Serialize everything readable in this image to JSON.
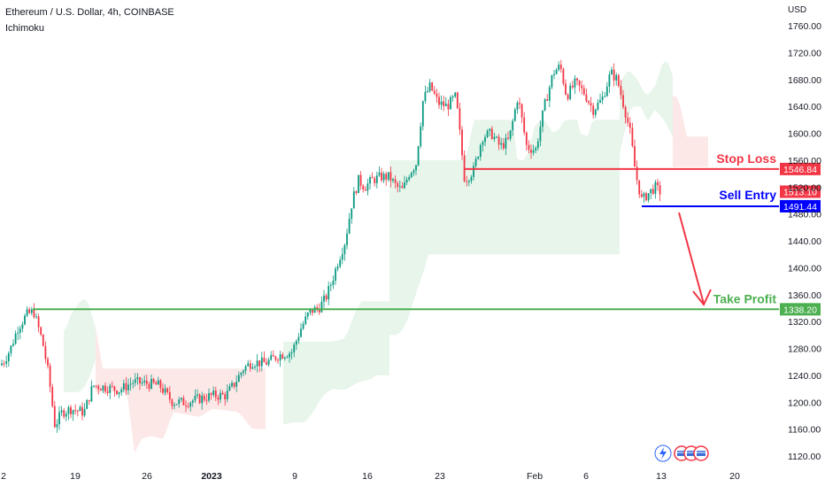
{
  "header": {
    "symbol": "Ethereum / U.S. Dollar, 4h, COINBASE",
    "indicator": "Ichimoku"
  },
  "currency": "USD",
  "colors": {
    "bull": "#089981",
    "bear": "#f23645",
    "stop": "#f23645",
    "entry": "#0000ff",
    "profit": "#4caf50",
    "cloud_green": "#e5f4e9",
    "cloud_red": "#fde6e6",
    "arrow": "#f23645"
  },
  "chart_data": {
    "type": "candlestick",
    "ylim": [
      1120,
      1780
    ],
    "y_ticks": [
      "1760.00",
      "1720.00",
      "1680.00",
      "1640.00",
      "1600.00",
      "1560.00",
      "1520.00",
      "1480.00",
      "1440.00",
      "1400.00",
      "1360.00",
      "1320.00",
      "1280.00",
      "1240.00",
      "1200.00",
      "1160.00",
      "1120.00"
    ],
    "x_ticks": [
      "2",
      "19",
      "26",
      "2023",
      "9",
      "16",
      "23",
      "Feb",
      "6",
      "13",
      "20"
    ],
    "price_path": [
      [
        0,
        1255
      ],
      [
        5,
        1262
      ],
      [
        12,
        1280
      ],
      [
        20,
        1310
      ],
      [
        30,
        1330
      ],
      [
        38,
        1335
      ],
      [
        48,
        1290
      ],
      [
        55,
        1240
      ],
      [
        62,
        1165
      ],
      [
        70,
        1185
      ],
      [
        80,
        1190
      ],
      [
        95,
        1185
      ],
      [
        105,
        1225
      ],
      [
        120,
        1222
      ],
      [
        135,
        1218
      ],
      [
        150,
        1230
      ],
      [
        165,
        1228
      ],
      [
        180,
        1225
      ],
      [
        195,
        1200
      ],
      [
        210,
        1200
      ],
      [
        225,
        1205
      ],
      [
        240,
        1210
      ],
      [
        255,
        1210
      ],
      [
        265,
        1228
      ],
      [
        275,
        1250
      ],
      [
        285,
        1260
      ],
      [
        300,
        1258
      ],
      [
        315,
        1270
      ],
      [
        330,
        1275
      ],
      [
        340,
        1310
      ],
      [
        350,
        1335
      ],
      [
        360,
        1340
      ],
      [
        368,
        1355
      ],
      [
        375,
        1380
      ],
      [
        382,
        1410
      ],
      [
        390,
        1440
      ],
      [
        398,
        1500
      ],
      [
        405,
        1530
      ],
      [
        412,
        1520
      ],
      [
        420,
        1530
      ],
      [
        430,
        1535
      ],
      [
        440,
        1535
      ],
      [
        448,
        1520
      ],
      [
        455,
        1515
      ],
      [
        462,
        1540
      ],
      [
        470,
        1555
      ],
      [
        478,
        1650
      ],
      [
        486,
        1670
      ],
      [
        495,
        1645
      ],
      [
        505,
        1640
      ],
      [
        515,
        1655
      ],
      [
        525,
        1530
      ],
      [
        535,
        1545
      ],
      [
        545,
        1595
      ],
      [
        555,
        1600
      ],
      [
        565,
        1580
      ],
      [
        575,
        1590
      ],
      [
        585,
        1655
      ],
      [
        595,
        1580
      ],
      [
        605,
        1575
      ],
      [
        615,
        1640
      ],
      [
        625,
        1690
      ],
      [
        633,
        1700
      ],
      [
        640,
        1655
      ],
      [
        650,
        1675
      ],
      [
        660,
        1660
      ],
      [
        670,
        1635
      ],
      [
        680,
        1650
      ],
      [
        690,
        1690
      ],
      [
        697,
        1680
      ],
      [
        705,
        1640
      ],
      [
        712,
        1600
      ],
      [
        718,
        1540
      ],
      [
        725,
        1500
      ],
      [
        732,
        1510
      ],
      [
        740,
        1520
      ],
      [
        748,
        1510
      ]
    ],
    "levels": [
      {
        "name": "Stop Loss",
        "value": 1546.84,
        "label": "1546.84"
      },
      {
        "name": "Sell Entry",
        "value": 1491.44,
        "label": "1491.44"
      },
      {
        "name": "Take Profit",
        "value": 1338.2,
        "label": "1338.20"
      }
    ],
    "current_price": {
      "value": 1513.1,
      "label": "1513.10"
    }
  }
}
